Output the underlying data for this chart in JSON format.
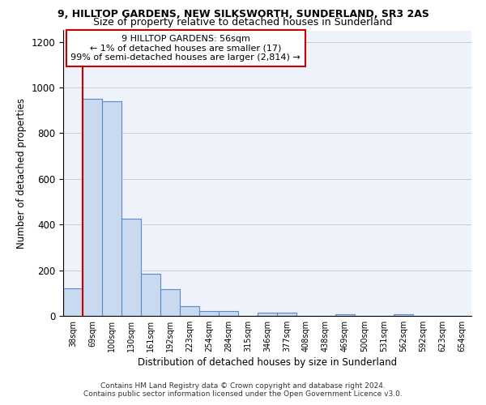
{
  "title1": "9, HILLTOP GARDENS, NEW SILKSWORTH, SUNDERLAND, SR3 2AS",
  "title2": "Size of property relative to detached houses in Sunderland",
  "xlabel": "Distribution of detached houses by size in Sunderland",
  "ylabel": "Number of detached properties",
  "footer1": "Contains HM Land Registry data © Crown copyright and database right 2024.",
  "footer2": "Contains public sector information licensed under the Open Government Licence v3.0.",
  "annotation_title": "9 HILLTOP GARDENS: 56sqm",
  "annotation_line1": "← 1% of detached houses are smaller (17)",
  "annotation_line2": "99% of semi-detached houses are larger (2,814) →",
  "bar_color": "#c9d9f0",
  "bar_edge_color": "#5b8ac9",
  "grid_color": "#cccccc",
  "bg_color": "#eef2fa",
  "redline_color": "#cc0000",
  "annotation_box_edge_color": "#cc0000",
  "categories": [
    "38sqm",
    "69sqm",
    "100sqm",
    "130sqm",
    "161sqm",
    "192sqm",
    "223sqm",
    "254sqm",
    "284sqm",
    "315sqm",
    "346sqm",
    "377sqm",
    "408sqm",
    "438sqm",
    "469sqm",
    "500sqm",
    "531sqm",
    "562sqm",
    "592sqm",
    "623sqm",
    "654sqm"
  ],
  "values": [
    120,
    950,
    940,
    425,
    185,
    118,
    42,
    20,
    20,
    0,
    15,
    15,
    0,
    0,
    8,
    0,
    0,
    8,
    0,
    0,
    0
  ],
  "ylim": [
    0,
    1250
  ],
  "yticks": [
    0,
    200,
    400,
    600,
    800,
    1000,
    1200
  ],
  "figsize": [
    6.0,
    5.0
  ],
  "dpi": 100
}
